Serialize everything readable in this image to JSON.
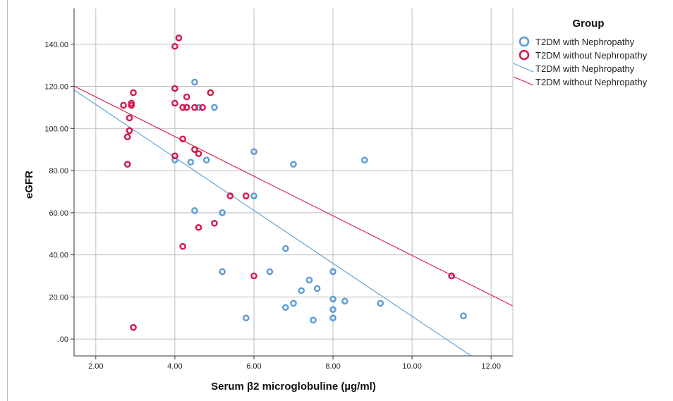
{
  "chart_data": {
    "type": "scatter",
    "xlabel": "Serum β2 microglobuline (µg/ml)",
    "ylabel": "eGFR",
    "xlim": [
      1.45,
      12.55
    ],
    "ylim": [
      -8,
      157
    ],
    "x_ticks": [
      2,
      4,
      6,
      8,
      10,
      12
    ],
    "x_tick_labels": [
      "2.00",
      "4.00",
      "6.00",
      "8.00",
      "10.00",
      "12.00"
    ],
    "y_ticks": [
      0,
      20,
      40,
      60,
      80,
      100,
      120,
      140
    ],
    "y_tick_labels": [
      ".00",
      "20.00",
      "40.00",
      "60.00",
      "80.00",
      "100.00",
      "120.00",
      "140.00"
    ],
    "grid": true,
    "legend": {
      "title": "Group",
      "placement": "right",
      "entries": [
        {
          "label": "T2DM with Nephropathy",
          "kind": "marker",
          "series": 0
        },
        {
          "label": "T2DM without Nephropathy",
          "kind": "marker",
          "series": 1
        },
        {
          "label": "T2DM with Nephropathy",
          "kind": "line",
          "series": 0
        },
        {
          "label": "T2DM without Nephropathy",
          "kind": "line",
          "series": 1
        }
      ]
    },
    "series": [
      {
        "name": "T2DM with Nephropathy",
        "color": "#5b9bd5",
        "points": [
          [
            2.8,
            96
          ],
          [
            4.0,
            85
          ],
          [
            4.4,
            84
          ],
          [
            4.5,
            122
          ],
          [
            4.6,
            110
          ],
          [
            4.8,
            85
          ],
          [
            5.0,
            110
          ],
          [
            4.5,
            61
          ],
          [
            5.2,
            60
          ],
          [
            5.2,
            32
          ],
          [
            5.8,
            10
          ],
          [
            6.0,
            89
          ],
          [
            6.0,
            68
          ],
          [
            6.4,
            32
          ],
          [
            6.8,
            43
          ],
          [
            6.8,
            15
          ],
          [
            7.0,
            83
          ],
          [
            7.0,
            17
          ],
          [
            7.2,
            23
          ],
          [
            7.4,
            28
          ],
          [
            7.5,
            9
          ],
          [
            7.6,
            24
          ],
          [
            8.0,
            32
          ],
          [
            8.0,
            19
          ],
          [
            8.0,
            14
          ],
          [
            8.0,
            10
          ],
          [
            8.3,
            18
          ],
          [
            8.8,
            85
          ],
          [
            9.2,
            17
          ],
          [
            11.0,
            30
          ],
          [
            11.3,
            11
          ]
        ],
        "fit": {
          "intercept": 136.5,
          "slope": -12.57
        }
      },
      {
        "name": "T2DM without Nephropathy",
        "color": "#d6174a",
        "points": [
          [
            2.7,
            111
          ],
          [
            2.8,
            96
          ],
          [
            2.8,
            83
          ],
          [
            2.85,
            105
          ],
          [
            2.85,
            99
          ],
          [
            2.9,
            112
          ],
          [
            2.9,
            111
          ],
          [
            2.95,
            117
          ],
          [
            2.95,
            5.5
          ],
          [
            4.0,
            139
          ],
          [
            4.1,
            143
          ],
          [
            4.0,
            119
          ],
          [
            4.0,
            112
          ],
          [
            4.2,
            110
          ],
          [
            4.3,
            110
          ],
          [
            4.3,
            115
          ],
          [
            4.5,
            110
          ],
          [
            4.7,
            110
          ],
          [
            4.9,
            117
          ],
          [
            4.2,
            95
          ],
          [
            4.5,
            90
          ],
          [
            4.6,
            88
          ],
          [
            4.0,
            87
          ],
          [
            5.4,
            68
          ],
          [
            5.8,
            68
          ],
          [
            4.6,
            53
          ],
          [
            5.0,
            55
          ],
          [
            4.2,
            44
          ],
          [
            6.0,
            30
          ],
          [
            11.0,
            30
          ]
        ],
        "fit": {
          "intercept": 133.8,
          "slope": -9.41
        }
      }
    ]
  }
}
